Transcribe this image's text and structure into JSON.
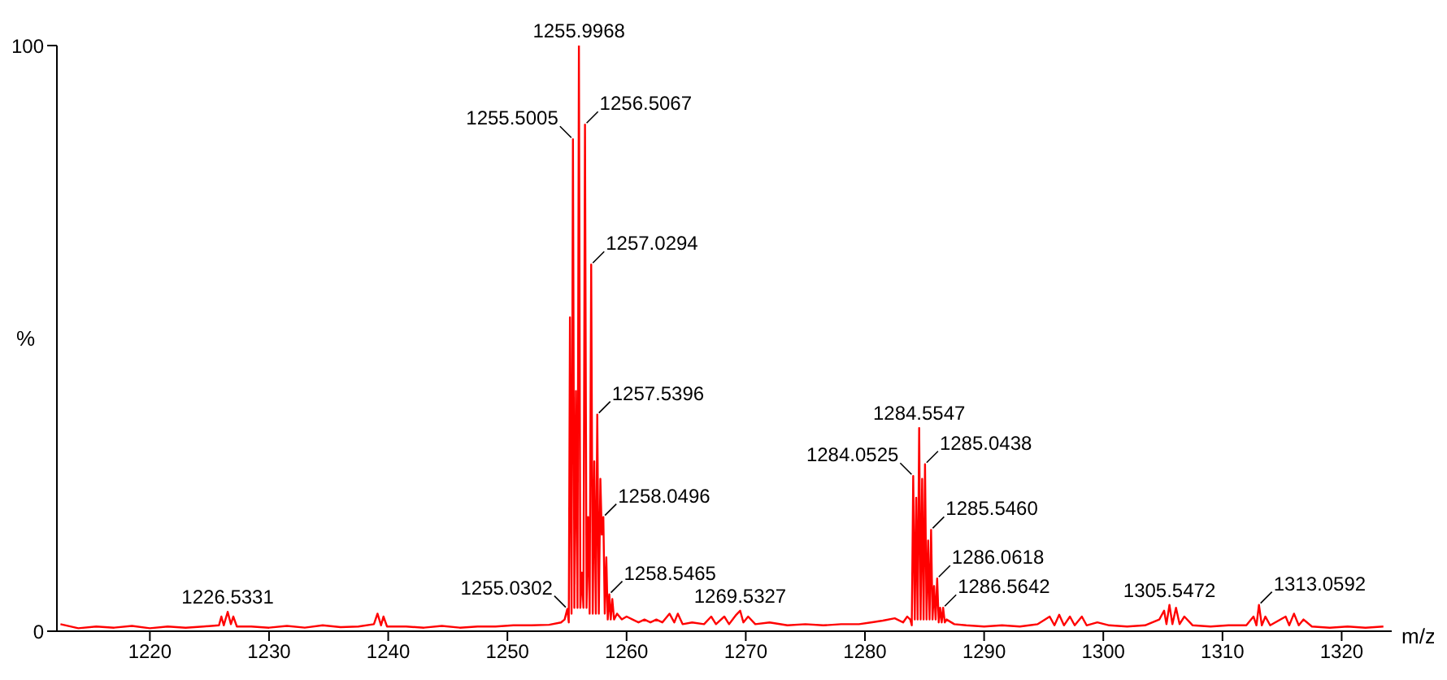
{
  "chart_data": {
    "type": "line",
    "xlabel": "m/z",
    "ylabel": "%",
    "xlim": [
      1212.2,
      1324.2
    ],
    "xticks": [
      1220,
      1230,
      1240,
      1250,
      1260,
      1270,
      1280,
      1290,
      1300,
      1310,
      1320
    ],
    "ylim": [
      0,
      100
    ],
    "yticks": [
      0,
      100
    ],
    "grid": false,
    "legend": false,
    "marker": "none",
    "line_style": "solid",
    "series": [
      {
        "color": "#ff0000",
        "x": [
          1212.5,
          1214,
          1215.5,
          1217,
          1218.5,
          1220,
          1221.5,
          1223,
          1224.5,
          1225.8,
          1226.0,
          1226.2,
          1226.53,
          1226.8,
          1227.0,
          1227.3,
          1228.5,
          1230,
          1231.5,
          1233,
          1234.5,
          1236,
          1237.5,
          1238.8,
          1239.1,
          1239.4,
          1239.6,
          1239.9,
          1241.5,
          1243,
          1244.5,
          1246,
          1247.5,
          1249,
          1250.5,
          1252,
          1253.5,
          1254.5,
          1254.8,
          1255.03,
          1255.15,
          1255.25,
          1255.38,
          1255.5,
          1255.62,
          1255.75,
          1255.88,
          1256.0,
          1256.12,
          1256.25,
          1256.38,
          1256.51,
          1256.64,
          1256.77,
          1256.9,
          1257.03,
          1257.16,
          1257.29,
          1257.42,
          1257.54,
          1257.67,
          1257.8,
          1257.92,
          1258.05,
          1258.17,
          1258.3,
          1258.42,
          1258.55,
          1258.67,
          1258.8,
          1258.95,
          1259.2,
          1259.6,
          1260,
          1260.5,
          1261,
          1261.5,
          1262,
          1262.5,
          1263,
          1263.6,
          1264.0,
          1264.3,
          1264.7,
          1265.5,
          1266.5,
          1267.1,
          1267.5,
          1268.2,
          1268.6,
          1269.2,
          1269.53,
          1269.8,
          1270.2,
          1270.8,
          1272,
          1273.5,
          1275,
          1276.5,
          1278,
          1279.5,
          1280.5,
          1281.5,
          1282.5,
          1283.2,
          1283.55,
          1283.8,
          1283.93,
          1284.05,
          1284.18,
          1284.3,
          1284.42,
          1284.55,
          1284.67,
          1284.8,
          1284.92,
          1285.04,
          1285.17,
          1285.3,
          1285.42,
          1285.55,
          1285.67,
          1285.8,
          1285.93,
          1286.06,
          1286.19,
          1286.31,
          1286.44,
          1286.56,
          1286.7,
          1286.85,
          1287.5,
          1288.5,
          1290,
          1291.5,
          1293,
          1294.5,
          1295.5,
          1295.9,
          1296.3,
          1296.7,
          1297.2,
          1297.6,
          1298.2,
          1298.6,
          1299.5,
          1300.5,
          1302,
          1303.5,
          1304.7,
          1305.1,
          1305.3,
          1305.55,
          1305.8,
          1306.1,
          1306.4,
          1306.8,
          1307.5,
          1309,
          1310.5,
          1312,
          1312.6,
          1312.85,
          1313.06,
          1313.3,
          1313.6,
          1314,
          1315.3,
          1315.6,
          1316,
          1316.4,
          1316.8,
          1317.5,
          1319,
          1320.5,
          1322,
          1323.5
        ],
        "values": [
          1.2,
          0.5,
          0.8,
          0.6,
          0.9,
          0.5,
          0.8,
          0.6,
          0.8,
          1.0,
          2.5,
          1,
          3.3,
          1.2,
          2.5,
          0.8,
          0.8,
          0.6,
          0.9,
          0.6,
          1.0,
          0.7,
          0.8,
          1.2,
          3,
          1,
          2.5,
          0.8,
          0.8,
          0.6,
          0.9,
          0.6,
          0.8,
          0.8,
          1.0,
          1.0,
          1.1,
          1.5,
          2,
          3.8,
          1.5,
          53.6,
          3,
          84,
          4,
          41,
          4,
          100,
          4,
          10,
          4,
          86.5,
          4,
          19.5,
          3,
          62.6,
          3,
          29,
          3,
          37,
          3,
          26,
          16.5,
          19.5,
          3,
          12.6,
          2,
          6.3,
          2,
          5.5,
          2,
          3,
          2,
          2.5,
          2,
          1.5,
          2,
          1.5,
          2,
          1.5,
          3,
          1.5,
          3,
          1.2,
          1.5,
          1.2,
          2.5,
          1.2,
          2.5,
          1.2,
          2.8,
          3.5,
          1.5,
          2.5,
          1.2,
          1.5,
          1,
          1.2,
          1,
          1.2,
          1.2,
          1.5,
          1.8,
          2.2,
          1.5,
          2.5,
          2,
          1,
          26.5,
          2,
          22.8,
          2,
          34.7,
          2,
          26,
          2,
          28.5,
          2,
          15.5,
          2,
          17.3,
          2,
          7.7,
          2,
          9,
          1.5,
          4,
          1.5,
          4,
          1.5,
          2,
          1.2,
          1,
          0.8,
          1,
          0.8,
          1.2,
          2.5,
          1,
          2.8,
          1,
          2.5,
          1,
          2.5,
          1,
          1.5,
          1,
          0.8,
          1,
          2,
          3.5,
          1.2,
          4.5,
          1.2,
          4,
          1.2,
          2.5,
          1,
          0.8,
          1,
          1,
          2.5,
          1,
          4.5,
          1,
          2.5,
          1,
          2.5,
          1,
          3,
          1,
          2,
          0.8,
          0.6,
          0.8,
          0.6,
          0.8
        ]
      }
    ],
    "annotations": [
      {
        "text": "1226.5331",
        "x": 1226.53,
        "y": 3.3
      },
      {
        "text": "1255.0302",
        "x": 1255.03,
        "y": 3.8
      },
      {
        "text": "1255.5005",
        "x": 1255.5,
        "y": 84
      },
      {
        "text": "1255.9968",
        "x": 1256.0,
        "y": 100
      },
      {
        "text": "1256.5067",
        "x": 1256.51,
        "y": 86.5
      },
      {
        "text": "1257.0294",
        "x": 1257.03,
        "y": 62.6
      },
      {
        "text": "1257.5396",
        "x": 1257.54,
        "y": 37
      },
      {
        "text": "1258.0496",
        "x": 1258.05,
        "y": 19.5
      },
      {
        "text": "1258.5465",
        "x": 1258.55,
        "y": 6.3
      },
      {
        "text": "1269.5327",
        "x": 1269.53,
        "y": 3.5
      },
      {
        "text": "1284.0525",
        "x": 1284.05,
        "y": 26.5
      },
      {
        "text": "1284.5547",
        "x": 1284.55,
        "y": 34.7
      },
      {
        "text": "1285.0438",
        "x": 1285.04,
        "y": 28.5
      },
      {
        "text": "1285.5460",
        "x": 1285.55,
        "y": 17.3
      },
      {
        "text": "1286.0618",
        "x": 1286.06,
        "y": 9
      },
      {
        "text": "1286.5642",
        "x": 1286.56,
        "y": 4
      },
      {
        "text": "1305.5472",
        "x": 1305.55,
        "y": 4.5
      },
      {
        "text": "1313.0592",
        "x": 1313.06,
        "y": 4.5
      }
    ]
  }
}
